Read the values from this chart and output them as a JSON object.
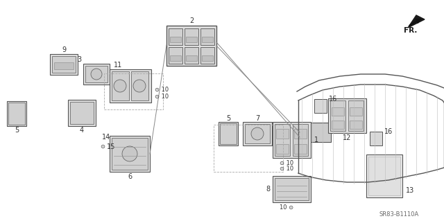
{
  "bg_color": "#ffffff",
  "line_color": "#555555",
  "text_color": "#333333",
  "fig_width": 6.4,
  "fig_height": 3.19,
  "watermark": "SR83-B1110A",
  "fr_label": "FR."
}
